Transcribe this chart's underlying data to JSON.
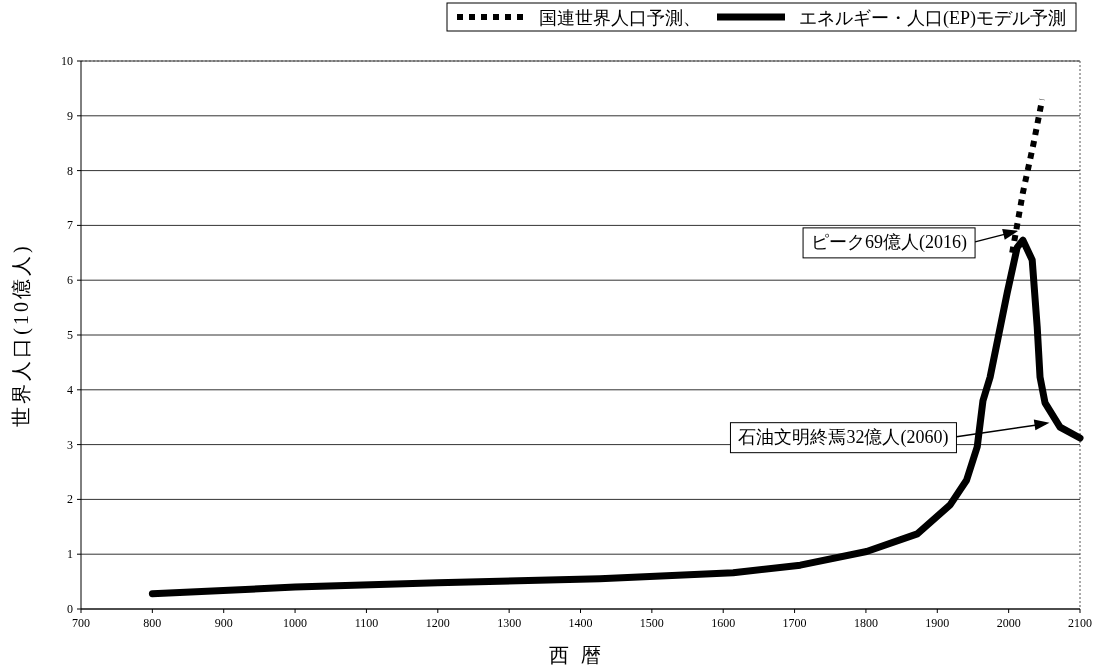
{
  "chart_data": {
    "type": "line",
    "xlabel": "西暦",
    "ylabel": "世界人口(10億人)",
    "xlim": [
      700,
      2100
    ],
    "xticks": [
      700,
      800,
      900,
      1000,
      1100,
      1200,
      1300,
      1400,
      1500,
      1600,
      1700,
      1800,
      1900,
      2000,
      2100
    ],
    "ylim": [
      0,
      10
    ],
    "yticks": [
      0,
      1,
      2,
      3,
      4,
      5,
      6,
      7,
      8,
      9,
      10
    ],
    "grid": "y",
    "legend": "top right",
    "marker": "none",
    "series": [
      {
        "name": "国連世界人口予測、",
        "color": "#000000",
        "line_style": "dotted",
        "x": [
          2005,
          2020,
          2035,
          2047
        ],
        "values": [
          6.5,
          7.6,
          8.5,
          9.3
        ]
      },
      {
        "name": "エネルギー・人口(EP)モデル予測",
        "color": "#000000",
        "line_style": "solid",
        "x": [
          800,
          1000,
          1200,
          1427,
          1614,
          1708,
          1801,
          1872,
          1918,
          1941,
          1956,
          1964,
          1974,
          1998,
          2012,
          2020,
          2033,
          2040,
          2044,
          2051,
          2072,
          2100
        ],
        "values": [
          0.28,
          0.4,
          0.48,
          0.55,
          0.66,
          0.8,
          1.05,
          1.37,
          1.9,
          2.35,
          2.96,
          3.8,
          4.23,
          5.77,
          6.6,
          6.73,
          6.37,
          5.15,
          4.23,
          3.76,
          3.32,
          3.12
        ]
      }
    ],
    "annotations": [
      {
        "text": "ピーク69億人(2016)",
        "x": 2016,
        "y": 6.9
      },
      {
        "text": "石油文明終焉32億人(2060)",
        "x": 2060,
        "y": 3.4
      }
    ]
  }
}
